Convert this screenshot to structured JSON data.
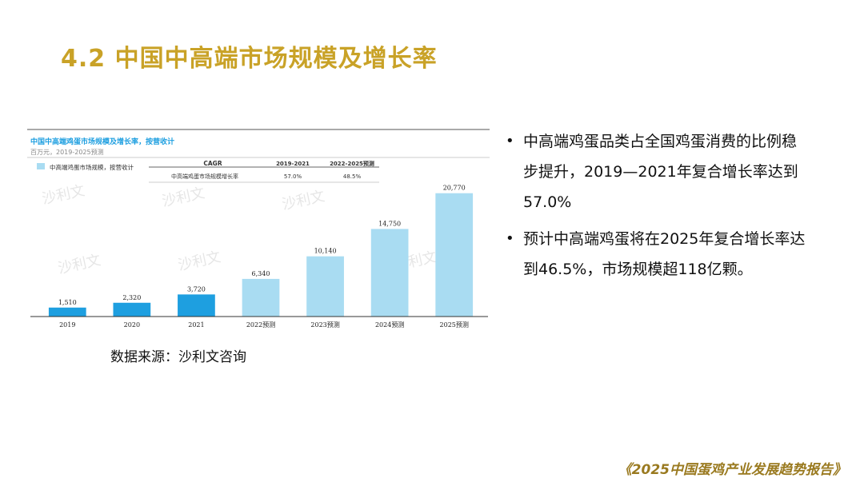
{
  "page": {
    "title": "4.2 中国中高端市场规模及增长率",
    "source": "数据来源：沙利文咨询",
    "footer": "《2025中国蛋鸡产业发展趋势报告》",
    "bullets": [
      "中高端鸡蛋品类占全国鸡蛋消费的比例稳步提升，2019—2021年复合增长率达到57.0%",
      "预计中高端鸡蛋将在2025年复合增长率达到46.5%，市场规模超118亿颗。"
    ]
  },
  "chart_header": {
    "title": "中国中高端鸡蛋市场规模及增长率，按营收计",
    "subtitle": "百万元，2019-2025预测",
    "legend_label": "中高端鸡蛋市场规模，按营收计",
    "cagr_title": "CAGR",
    "cagr_col1": "2019-2021",
    "cagr_col2": "2022-2025预测",
    "cagr_row_label": "中高端鸡蛋市场规模增长率",
    "cagr_val1": "57.0%",
    "cagr_val2": "48.5%",
    "watermark": "沙利文"
  },
  "colors": {
    "actual": "#1E9FE0",
    "forecast": "#A9DCF2",
    "title": "#C9A227"
  },
  "chart_data": {
    "type": "bar",
    "title": "中国中高端鸡蛋市场规模及增长率，按营收计",
    "subtitle": "百万元，2019-2025预测",
    "categories": [
      "2019",
      "2020",
      "2021",
      "2022预测",
      "2023预测",
      "2024预测",
      "2025预测"
    ],
    "series": [
      {
        "name": "中高端鸡蛋市场规模，按营收计",
        "values": [
          1510,
          2320,
          3720,
          6340,
          10140,
          14750,
          20770
        ],
        "labels": [
          "1,510",
          "2,320",
          "3,720",
          "6,340",
          "10,140",
          "14,750",
          "20,770"
        ],
        "forecast": [
          false,
          false,
          false,
          true,
          true,
          true,
          true
        ]
      }
    ],
    "ylim": [
      0,
      21000
    ],
    "xlabel": "",
    "ylabel": "",
    "grid": false,
    "legend": "top-left"
  }
}
